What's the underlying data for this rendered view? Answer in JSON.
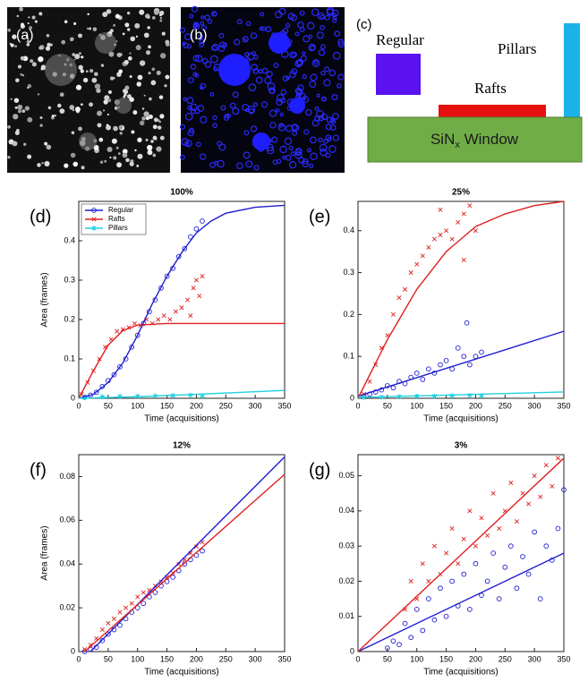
{
  "panels": [
    {
      "label": "(a)"
    },
    {
      "label": "(b)"
    }
  ],
  "diagram": {
    "label": "(c)",
    "regular": "Regular",
    "pillars": "Pillars",
    "rafts": "Rafts",
    "window": {
      "main": "SiN",
      "sub": "x",
      "rest": " Window"
    }
  },
  "chart_data": [
    {
      "type": "scatter",
      "panel_label": "(d)",
      "title": "100%",
      "xlabel": "Time (acquisitions)",
      "ylabel": "Area (frames)",
      "xlim": [
        0,
        350
      ],
      "xticks": [
        0,
        50,
        100,
        150,
        200,
        250,
        300,
        350
      ],
      "ylim": [
        0,
        0.5
      ],
      "yticks": [
        0,
        0.1,
        0.2,
        0.3,
        0.4
      ],
      "legend": "top-left",
      "series": [
        {
          "name": "Regular",
          "color": "#1f1fd0",
          "marker": "o",
          "x": [
            10,
            20,
            30,
            40,
            50,
            60,
            70,
            80,
            90,
            100,
            110,
            120,
            130,
            140,
            150,
            160,
            170,
            180,
            190,
            200,
            210
          ],
          "values": [
            0.003,
            0.008,
            0.015,
            0.03,
            0.045,
            0.06,
            0.08,
            0.1,
            0.13,
            0.16,
            0.19,
            0.22,
            0.25,
            0.28,
            0.31,
            0.33,
            0.36,
            0.38,
            0.41,
            0.43,
            0.45
          ],
          "fit": {
            "x": [
              0,
              25,
              50,
              75,
              100,
              125,
              150,
              175,
              200,
              225,
              250,
              300,
              350
            ],
            "values": [
              0,
              0.01,
              0.04,
              0.09,
              0.16,
              0.24,
              0.31,
              0.37,
              0.42,
              0.45,
              0.47,
              0.485,
              0.49
            ]
          }
        },
        {
          "name": "Rafts",
          "color": "#e02020",
          "marker": "x",
          "x": [
            5,
            15,
            25,
            35,
            45,
            55,
            65,
            75,
            85,
            95,
            105,
            115,
            125,
            135,
            145,
            155,
            165,
            175,
            185,
            190,
            195,
            200,
            205,
            210
          ],
          "values": [
            0.01,
            0.04,
            0.07,
            0.1,
            0.13,
            0.15,
            0.17,
            0.175,
            0.18,
            0.19,
            0.185,
            0.2,
            0.19,
            0.2,
            0.21,
            0.2,
            0.22,
            0.23,
            0.25,
            0.21,
            0.28,
            0.3,
            0.26,
            0.31
          ],
          "fit": {
            "x": [
              0,
              25,
              50,
              75,
              100,
              150,
              350
            ],
            "values": [
              0,
              0.07,
              0.135,
              0.172,
              0.186,
              0.19,
              0.19
            ]
          }
        },
        {
          "name": "Pillars",
          "color": "#20d0e0",
          "marker": "*",
          "x": [
            10,
            40,
            70,
            100,
            130,
            160,
            190,
            210
          ],
          "values": [
            0.002,
            0.004,
            0.005,
            0.005,
            0.006,
            0.007,
            0.008,
            0.006
          ],
          "fit": {
            "x": [
              0,
              100,
              200,
              350
            ],
            "values": [
              0,
              0.004,
              0.01,
              0.02
            ]
          }
        }
      ]
    },
    {
      "type": "scatter",
      "panel_label": "(e)",
      "title": "25%",
      "xlabel": "Time (acquisitions)",
      "xlim": [
        0,
        350
      ],
      "xticks": [
        0,
        50,
        100,
        150,
        200,
        250,
        300,
        350
      ],
      "ylim": [
        0,
        0.47
      ],
      "yticks": [
        0,
        0.1,
        0.2,
        0.3,
        0.4
      ],
      "series": [
        {
          "color": "#1f1fd0",
          "marker": "o",
          "x": [
            10,
            20,
            30,
            40,
            50,
            60,
            70,
            80,
            90,
            100,
            110,
            120,
            130,
            140,
            150,
            160,
            170,
            180,
            185,
            190,
            200,
            210
          ],
          "values": [
            0.005,
            0.01,
            0.015,
            0.02,
            0.03,
            0.025,
            0.04,
            0.035,
            0.05,
            0.06,
            0.045,
            0.07,
            0.06,
            0.08,
            0.09,
            0.07,
            0.12,
            0.1,
            0.18,
            0.08,
            0.1,
            0.11
          ],
          "fit": {
            "x": [
              0,
              350
            ],
            "values": [
              0.005,
              0.16
            ]
          }
        },
        {
          "color": "#e02020",
          "marker": "x",
          "x": [
            10,
            20,
            30,
            40,
            50,
            60,
            70,
            80,
            90,
            100,
            110,
            120,
            130,
            140,
            150,
            160,
            170,
            180,
            190,
            200,
            140,
            180
          ],
          "values": [
            0.01,
            0.04,
            0.08,
            0.12,
            0.15,
            0.2,
            0.24,
            0.26,
            0.3,
            0.32,
            0.34,
            0.36,
            0.38,
            0.39,
            0.4,
            0.38,
            0.42,
            0.44,
            0.46,
            0.4,
            0.45,
            0.33
          ],
          "fit": {
            "x": [
              0,
              25,
              50,
              75,
              100,
              150,
              200,
              250,
              300,
              350
            ],
            "values": [
              0,
              0.07,
              0.14,
              0.2,
              0.26,
              0.35,
              0.41,
              0.44,
              0.46,
              0.47
            ]
          }
        },
        {
          "color": "#20d0e0",
          "marker": "*",
          "x": [
            10,
            40,
            70,
            100,
            130,
            160,
            190,
            210
          ],
          "values": [
            0.002,
            0.003,
            0.004,
            0.005,
            0.005,
            0.006,
            0.007,
            0.006
          ],
          "fit": {
            "x": [
              0,
              350
            ],
            "values": [
              0.002,
              0.015
            ]
          }
        }
      ]
    },
    {
      "type": "scatter",
      "panel_label": "(f)",
      "title": "12%",
      "xlabel": "Time (acquisitions)",
      "ylabel": "Area (frames)",
      "xlim": [
        0,
        350
      ],
      "xticks": [
        0,
        50,
        100,
        150,
        200,
        250,
        300,
        350
      ],
      "ylim": [
        0,
        0.09
      ],
      "yticks": [
        0,
        0.02,
        0.04,
        0.06,
        0.08
      ],
      "series": [
        {
          "color": "#1f1fd0",
          "marker": "o",
          "x": [
            10,
            20,
            30,
            40,
            50,
            60,
            70,
            80,
            90,
            100,
            110,
            120,
            130,
            140,
            150,
            160,
            170,
            180,
            190,
            200,
            210
          ],
          "values": [
            0,
            0.001,
            0.002,
            0.005,
            0.008,
            0.01,
            0.012,
            0.015,
            0.018,
            0.02,
            0.022,
            0.025,
            0.027,
            0.03,
            0.032,
            0.034,
            0.037,
            0.04,
            0.042,
            0.044,
            0.046
          ],
          "fit": {
            "x": [
              20,
              350
            ],
            "values": [
              0,
              0.089
            ]
          }
        },
        {
          "color": "#e02020",
          "marker": "x",
          "x": [
            10,
            20,
            30,
            40,
            50,
            60,
            70,
            80,
            90,
            100,
            110,
            120,
            130,
            140,
            150,
            160,
            170,
            180,
            190,
            200,
            210
          ],
          "values": [
            0.001,
            0.003,
            0.006,
            0.01,
            0.013,
            0.015,
            0.018,
            0.02,
            0.022,
            0.025,
            0.027,
            0.028,
            0.03,
            0.032,
            0.034,
            0.036,
            0.04,
            0.042,
            0.045,
            0.048,
            0.05
          ],
          "fit": {
            "x": [
              10,
              350
            ],
            "values": [
              0,
              0.081
            ]
          }
        }
      ]
    },
    {
      "type": "scatter",
      "panel_label": "(g)",
      "title": "3%",
      "xlabel": "Time (acquisitions)",
      "xlim": [
        0,
        350
      ],
      "xticks": [
        0,
        50,
        100,
        150,
        200,
        250,
        300,
        350
      ],
      "ylim": [
        0,
        0.056
      ],
      "yticks": [
        0,
        0.01,
        0.02,
        0.03,
        0.04,
        0.05
      ],
      "series": [
        {
          "color": "#1f1fd0",
          "marker": "o",
          "x": [
            50,
            60,
            70,
            80,
            90,
            100,
            110,
            120,
            130,
            140,
            150,
            160,
            170,
            180,
            190,
            200,
            210,
            220,
            230,
            240,
            250,
            260,
            270,
            280,
            290,
            300,
            310,
            320,
            330,
            340,
            350
          ],
          "values": [
            0.001,
            0.003,
            0.002,
            0.008,
            0.004,
            0.012,
            0.006,
            0.015,
            0.009,
            0.018,
            0.01,
            0.02,
            0.013,
            0.022,
            0.012,
            0.025,
            0.016,
            0.02,
            0.028,
            0.015,
            0.024,
            0.03,
            0.018,
            0.027,
            0.022,
            0.034,
            0.015,
            0.03,
            0.026,
            0.035,
            0.046
          ],
          "fit": {
            "x": [
              0,
              350
            ],
            "values": [
              0,
              0.028
            ]
          }
        },
        {
          "color": "#e02020",
          "marker": "x",
          "x": [
            80,
            90,
            100,
            110,
            120,
            130,
            140,
            150,
            160,
            170,
            180,
            190,
            200,
            210,
            220,
            230,
            240,
            250,
            260,
            270,
            280,
            290,
            300,
            310,
            320,
            330,
            340
          ],
          "values": [
            0.012,
            0.02,
            0.015,
            0.025,
            0.02,
            0.03,
            0.022,
            0.028,
            0.035,
            0.025,
            0.032,
            0.04,
            0.03,
            0.038,
            0.033,
            0.045,
            0.035,
            0.04,
            0.048,
            0.037,
            0.045,
            0.042,
            0.05,
            0.044,
            0.053,
            0.047,
            0.055
          ],
          "fit": {
            "x": [
              0,
              350
            ],
            "values": [
              0,
              0.055
            ]
          }
        }
      ]
    }
  ]
}
